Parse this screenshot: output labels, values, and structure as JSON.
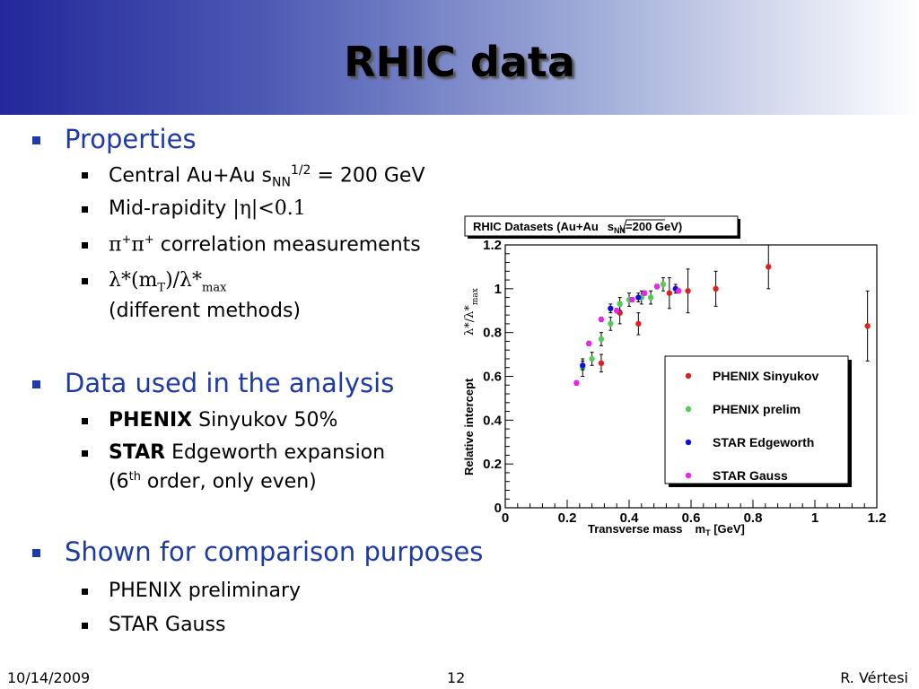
{
  "title": "RHIC data",
  "bullets": {
    "properties": "Properties",
    "central_prefix": "Central Au+Au s",
    "central_sub": "NN",
    "central_sup": "1/2",
    "central_suffix": " = 200 GeV",
    "midrap_text": "Mid-rapidity ",
    "midrap_math": "|η|<0.1",
    "pipi_math": "π",
    "pipi_sup": "+",
    "pipi_text": " correlation measurements",
    "lambda_a": "λ*(m",
    "lambda_sub_t": "T",
    "lambda_b": ")/λ*",
    "lambda_sub_max": "max",
    "different_methods": "(different methods)",
    "data_used": "Data used in the analysis",
    "phenix_bold": "PHENIX",
    "phenix_rest": " Sinyukov 50%",
    "star_bold": "STAR",
    "star_rest": " Edgeworth expansion",
    "order_a": "(6",
    "order_sup": "th",
    "order_b": " order, only even)",
    "shown": "Shown for comparison purposes",
    "phenix_prelim": "PHENIX preliminary",
    "star_gauss": "STAR Gauss"
  },
  "footer": {
    "date": "10/14/2009",
    "page": "12",
    "author": "R. Vértesi"
  },
  "colors": {
    "red": "#e02020",
    "green": "#55cc55",
    "blue": "#1010dd",
    "magenta": "#ee22ee",
    "accent": "#1e3aa8"
  },
  "chart_data": {
    "type": "scatter",
    "title_prefix": "RHIC Datasets (Au+Au",
    "title_sqrt_s": "s",
    "title_sub": "NN",
    "title_suffix": "=200 GeV)",
    "xlabel_main": "Transverse mass",
    "xlabel_m": "m",
    "xlabel_sub": "T",
    "xlabel_unit": " [GeV]",
    "ylabel_main": "Relative intercept",
    "ylabel_lambda": "λ*/λ*",
    "ylabel_sub": "max",
    "xlim": [
      0,
      1.2
    ],
    "ylim": [
      0,
      1.2
    ],
    "xticks": [
      "0",
      "0.2",
      "0.4",
      "0.6",
      "0.8",
      "1",
      "1.2"
    ],
    "yticks": [
      "0",
      "0.2",
      "0.4",
      "0.6",
      "0.8",
      "1",
      "1.2"
    ],
    "legend_position": "bottom-right",
    "series": [
      {
        "name": "PHENIX Sinyukov",
        "color": "#e02020",
        "points": [
          {
            "x": 0.31,
            "y": 0.66,
            "err": 0.04
          },
          {
            "x": 0.37,
            "y": 0.89,
            "err": 0.05
          },
          {
            "x": 0.43,
            "y": 0.84,
            "err": 0.05
          },
          {
            "x": 0.53,
            "y": 0.98,
            "err": 0.07
          },
          {
            "x": 0.59,
            "y": 0.99,
            "err": 0.1
          },
          {
            "x": 0.68,
            "y": 1.0,
            "err": 0.08
          },
          {
            "x": 0.85,
            "y": 1.1,
            "err": 0.1
          },
          {
            "x": 1.17,
            "y": 0.83,
            "err": 0.16
          }
        ]
      },
      {
        "name": "PHENIX prelim",
        "color": "#55cc55",
        "points": [
          {
            "x": 0.25,
            "y": 0.64,
            "err": 0.04
          },
          {
            "x": 0.28,
            "y": 0.68,
            "err": 0.03
          },
          {
            "x": 0.31,
            "y": 0.77,
            "err": 0.03
          },
          {
            "x": 0.34,
            "y": 0.84,
            "err": 0.03
          },
          {
            "x": 0.37,
            "y": 0.93,
            "err": 0.03
          },
          {
            "x": 0.4,
            "y": 0.95,
            "err": 0.03
          },
          {
            "x": 0.44,
            "y": 0.96,
            "err": 0.03
          },
          {
            "x": 0.47,
            "y": 0.96,
            "err": 0.03
          },
          {
            "x": 0.51,
            "y": 1.02,
            "err": 0.03
          }
        ]
      },
      {
        "name": "STAR Edgeworth",
        "color": "#1010dd",
        "points": [
          {
            "x": 0.25,
            "y": 0.65,
            "err": 0.02
          },
          {
            "x": 0.34,
            "y": 0.91,
            "err": 0.02
          },
          {
            "x": 0.43,
            "y": 0.96,
            "err": 0.02
          },
          {
            "x": 0.55,
            "y": 1.0,
            "err": 0.02
          }
        ]
      },
      {
        "name": "STAR Gauss",
        "color": "#ee22ee",
        "points": [
          {
            "x": 0.23,
            "y": 0.57,
            "err": 0.01
          },
          {
            "x": 0.27,
            "y": 0.75,
            "err": 0.01
          },
          {
            "x": 0.31,
            "y": 0.86,
            "err": 0.01
          },
          {
            "x": 0.36,
            "y": 0.9,
            "err": 0.01
          },
          {
            "x": 0.41,
            "y": 0.95,
            "err": 0.01
          },
          {
            "x": 0.45,
            "y": 0.98,
            "err": 0.01
          },
          {
            "x": 0.49,
            "y": 1.01,
            "err": 0.01
          },
          {
            "x": 0.56,
            "y": 0.99,
            "err": 0.01
          }
        ]
      }
    ]
  }
}
